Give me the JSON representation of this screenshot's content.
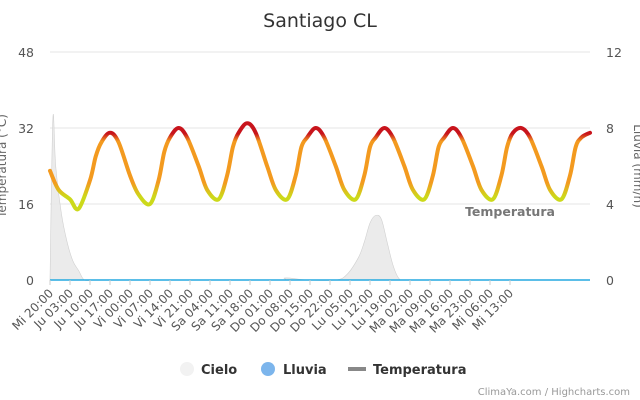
{
  "chart_data": {
    "type": "line",
    "title": "Santiago CL",
    "ylabel_left": "Temperatura (°C)",
    "ylabel_right": "Lluvia (mm/h)",
    "yticks_left": [
      "0",
      "16",
      "32",
      "48"
    ],
    "yticks_right": [
      "0",
      "4",
      "8",
      "12"
    ],
    "ylim_left": [
      0,
      48
    ],
    "ylim_right": [
      0,
      12
    ],
    "grid": true,
    "legend_position": "bottom",
    "x_labels": [
      "Mi 20:00",
      "Ju 03:00",
      "Ju 10:00",
      "Ju 17:00",
      "Vi 00:00",
      "Vi 07:00",
      "Vi 14:00",
      "Vi 21:00",
      "Sa 04:00",
      "Sa 11:00",
      "Sa 18:00",
      "Do 01:00",
      "Do 08:00",
      "Do 15:00",
      "Do 22:00",
      "Lu 05:00",
      "Lu 12:00",
      "Lu 19:00",
      "Ma 02:00",
      "Ma 09:00",
      "Ma 16:00",
      "Ma 23:00",
      "Mi 06:00",
      "Mi 13:00"
    ],
    "x_label_step_hours": 7,
    "series": [
      {
        "name": "Temperatura",
        "axis": "left",
        "hours": [
          0,
          3,
          7,
          10,
          14,
          16,
          18,
          21,
          24,
          28,
          31,
          35,
          38,
          40,
          42,
          45,
          48,
          52,
          55,
          59,
          62,
          64,
          66,
          69,
          72,
          76,
          79,
          83,
          86,
          88,
          90,
          93,
          96,
          100,
          103,
          107,
          110,
          112,
          114,
          117,
          120,
          124,
          127,
          131,
          134,
          136,
          138,
          141,
          144,
          148,
          151,
          155,
          158,
          160,
          162,
          165,
          168,
          172,
          175,
          179,
          182,
          184,
          186,
          189
        ],
        "values": [
          23,
          19,
          17,
          15,
          21,
          26,
          29,
          31,
          29,
          22,
          18,
          16,
          21,
          27,
          30,
          32,
          30,
          24,
          19,
          17,
          22,
          28,
          31,
          33,
          31,
          24,
          19,
          17,
          22,
          28,
          30,
          32,
          30,
          24,
          19,
          17,
          22,
          28,
          30,
          32,
          30,
          24,
          19,
          17,
          22,
          28,
          30,
          32,
          30,
          24,
          19,
          17,
          22,
          28,
          31,
          32,
          30,
          24,
          19,
          17,
          22,
          28,
          30,
          31
        ],
        "color_scale": [
          {
            "from": 0,
            "color": "#ccd91a"
          },
          {
            "from": 19,
            "color": "#f39a1f"
          },
          {
            "from": 30,
            "color": "#c8141c"
          }
        ]
      },
      {
        "name": "Cielo",
        "axis": "right",
        "color": "#e8e8e8",
        "hours": [
          0,
          1,
          2,
          4,
          6,
          8,
          10,
          12,
          15,
          20,
          40,
          44,
          48,
          55,
          80,
          82,
          84,
          90,
          100,
          104,
          108,
          110,
          112,
          114,
          116,
          118,
          120,
          122,
          124,
          130,
          140,
          160,
          189
        ],
        "values": [
          0,
          8.5,
          6,
          3.5,
          2,
          1,
          0.5,
          0,
          0,
          0,
          0,
          0,
          0,
          0,
          0,
          0.1,
          0.1,
          0,
          0,
          0.3,
          1.2,
          2,
          3,
          3.4,
          3.2,
          2,
          0.8,
          0.1,
          0,
          0,
          0,
          0,
          0
        ]
      },
      {
        "name": "Lluvia",
        "axis": "right",
        "color": "#25a9e0",
        "hours": [
          0,
          189
        ],
        "values": [
          0,
          0
        ]
      }
    ],
    "annotation": "Temperatura"
  },
  "legend": [
    {
      "label": "Cielo",
      "swatch": "circle",
      "color": "#f2f2f2"
    },
    {
      "label": "Lluvia",
      "swatch": "circle",
      "color": "#7cb5ec"
    },
    {
      "label": "Temperatura",
      "swatch": "line",
      "color": "#888888"
    }
  ],
  "credits": "ClimaYa.com / Highcharts.com"
}
